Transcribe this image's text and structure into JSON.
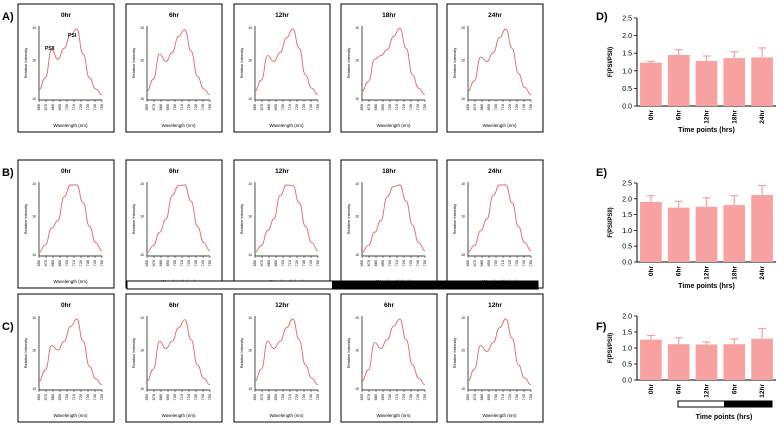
{
  "panel_labels": [
    "A)",
    "B)",
    "C)",
    "D)",
    "E)",
    "F)"
  ],
  "spectra_ylabel": "Relative Intensity",
  "spectra_xlabel": "Wavelength (nm)",
  "spectra_xticks": [
    "650",
    "670",
    "680",
    "690",
    "700",
    "710",
    "720",
    "730",
    "740",
    "750"
  ],
  "bar_xlabel": "Time points (hrs)",
  "bar_ylabel": "F(PSI/PSII)",
  "colors": {
    "spectrum": "#e06a6a",
    "bar": "#f7a1a1",
    "frame": "#000000"
  },
  "chart_data": [
    {
      "type": "line",
      "panel": "A)",
      "titles": [
        "0hr",
        "6hr",
        "12hr",
        "18hr",
        "24hr"
      ],
      "annotations": [
        "PSII",
        "PSI"
      ],
      "x": [
        650,
        660,
        670,
        680,
        690,
        700,
        710,
        720,
        730,
        740,
        750
      ],
      "series": [
        {
          "values": [
            0.14,
            0.3,
            0.68,
            0.55,
            0.7,
            0.88,
            0.96,
            0.62,
            0.3,
            0.15,
            0.07
          ]
        },
        {
          "values": [
            0.12,
            0.28,
            0.62,
            0.52,
            0.64,
            0.86,
            0.95,
            0.66,
            0.32,
            0.15,
            0.07
          ]
        },
        {
          "values": [
            0.12,
            0.27,
            0.6,
            0.52,
            0.64,
            0.84,
            0.96,
            0.7,
            0.34,
            0.16,
            0.07
          ]
        },
        {
          "values": [
            0.12,
            0.25,
            0.55,
            0.6,
            0.68,
            0.86,
            0.97,
            0.7,
            0.34,
            0.16,
            0.07
          ]
        },
        {
          "values": [
            0.12,
            0.26,
            0.58,
            0.52,
            0.64,
            0.84,
            0.96,
            0.7,
            0.36,
            0.17,
            0.07
          ]
        }
      ]
    },
    {
      "type": "line",
      "panel": "B)",
      "titles": [
        "0hr",
        "6hr",
        "12hr",
        "18hr",
        "24hr"
      ],
      "x": [
        650,
        660,
        670,
        680,
        690,
        700,
        710,
        720,
        730,
        740,
        750
      ],
      "series": [
        {
          "values": [
            0.05,
            0.15,
            0.38,
            0.48,
            0.8,
            0.96,
            0.96,
            0.72,
            0.4,
            0.18,
            0.07
          ]
        },
        {
          "values": [
            0.05,
            0.14,
            0.32,
            0.5,
            0.82,
            0.95,
            0.96,
            0.74,
            0.4,
            0.18,
            0.07
          ]
        },
        {
          "values": [
            0.05,
            0.14,
            0.34,
            0.5,
            0.82,
            0.96,
            0.95,
            0.72,
            0.4,
            0.18,
            0.07
          ]
        },
        {
          "values": [
            0.05,
            0.14,
            0.32,
            0.48,
            0.8,
            0.94,
            0.96,
            0.74,
            0.42,
            0.18,
            0.07
          ]
        },
        {
          "values": [
            0.05,
            0.14,
            0.34,
            0.5,
            0.82,
            0.96,
            0.96,
            0.72,
            0.4,
            0.18,
            0.07
          ]
        }
      ]
    },
    {
      "type": "line",
      "panel": "C)",
      "titles": [
        "0hr",
        "6hr",
        "12hr",
        "6hr",
        "12hr"
      ],
      "x": [
        650,
        660,
        670,
        680,
        690,
        700,
        710,
        720,
        730,
        740,
        750
      ],
      "series": [
        {
          "values": [
            0.12,
            0.27,
            0.6,
            0.54,
            0.66,
            0.86,
            0.96,
            0.66,
            0.32,
            0.15,
            0.07
          ]
        },
        {
          "values": [
            0.12,
            0.28,
            0.66,
            0.56,
            0.66,
            0.84,
            0.95,
            0.68,
            0.34,
            0.16,
            0.07
          ]
        },
        {
          "values": [
            0.12,
            0.28,
            0.66,
            0.56,
            0.66,
            0.84,
            0.96,
            0.68,
            0.34,
            0.16,
            0.07
          ]
        },
        {
          "values": [
            0.12,
            0.27,
            0.64,
            0.56,
            0.68,
            0.86,
            0.96,
            0.68,
            0.34,
            0.16,
            0.07
          ]
        },
        {
          "values": [
            0.12,
            0.28,
            0.6,
            0.52,
            0.64,
            0.84,
            0.96,
            0.7,
            0.34,
            0.16,
            0.07
          ]
        }
      ]
    },
    {
      "type": "bar",
      "panel": "D)",
      "categories": [
        "0hr",
        "6hr",
        "12hr",
        "18hr",
        "24hr"
      ],
      "values": [
        1.23,
        1.45,
        1.28,
        1.36,
        1.38
      ],
      "errors": [
        0.04,
        0.15,
        0.14,
        0.18,
        0.27
      ],
      "ylim": [
        0,
        2.5
      ],
      "yticks": [
        "0.0",
        "0.5",
        "1.0",
        "1.5",
        "2.0",
        "2.5"
      ]
    },
    {
      "type": "bar",
      "panel": "E)",
      "categories": [
        "0hr",
        "6hr",
        "12hr",
        "18hr",
        "24hr"
      ],
      "values": [
        1.9,
        1.72,
        1.75,
        1.8,
        2.12
      ],
      "errors": [
        0.2,
        0.2,
        0.28,
        0.3,
        0.3
      ],
      "ylim": [
        0,
        2.5
      ],
      "yticks": [
        "0.0",
        "0.5",
        "1.0",
        "1.5",
        "2.0",
        "2.5"
      ]
    },
    {
      "type": "bar",
      "panel": "F)",
      "categories": [
        "0hr",
        "6hr",
        "12hr",
        "6hr",
        "12hr"
      ],
      "values": [
        1.26,
        1.12,
        1.11,
        1.12,
        1.29
      ],
      "errors": [
        0.13,
        0.2,
        0.08,
        0.16,
        0.32
      ],
      "ylim": [
        0,
        2.0
      ],
      "yticks": [
        "0.0",
        "0.5",
        "1.0",
        "1.5",
        "2.0"
      ]
    }
  ]
}
